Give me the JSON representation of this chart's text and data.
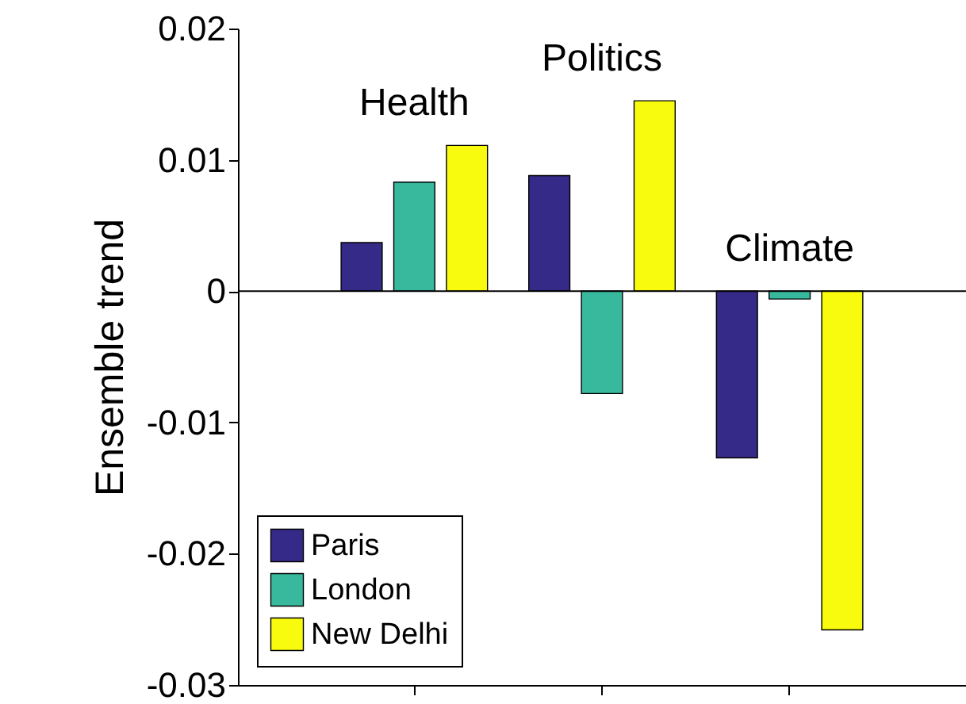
{
  "chart_data": {
    "type": "bar",
    "ylabel": "Ensemble trend",
    "categories": [
      "Health",
      "Politics",
      "Climate"
    ],
    "series": [
      {
        "name": "Paris",
        "color": "#352a87",
        "values": [
          0.0037,
          0.0088,
          -0.0127
        ]
      },
      {
        "name": "London",
        "color": "#38b99e",
        "values": [
          0.0083,
          -0.0078,
          -0.0006
        ]
      },
      {
        "name": "New Delhi",
        "color": "#f9fb0e",
        "values": [
          0.0111,
          0.0145,
          -0.0258
        ]
      }
    ],
    "ylim": [
      -0.03,
      0.02
    ],
    "yticks": [
      -0.03,
      -0.02,
      -0.01,
      0,
      0.01,
      0.02
    ],
    "ref_lines": [
      {
        "axis": "y",
        "value": 0
      }
    ],
    "legend": "bottom left"
  }
}
